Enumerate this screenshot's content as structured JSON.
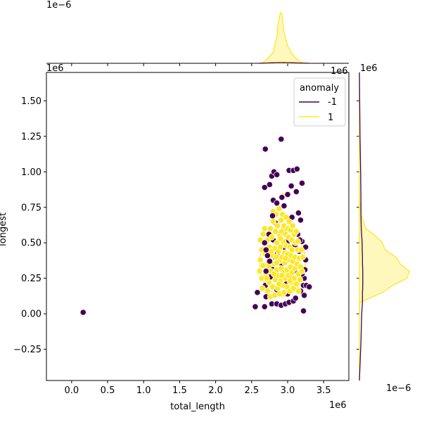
{
  "chart_data": {
    "type": "scatter",
    "variant": "jointplot",
    "xlabel": "total_length",
    "ylabel": "longest",
    "x_offset_text": "1e6",
    "y_offset_text": "1e6",
    "x_tick_labels": [
      "0.0",
      "0.5",
      "1.0",
      "1.5",
      "2.0",
      "2.5",
      "3.0",
      "3.5"
    ],
    "x_tick_values": [
      0,
      500000,
      1000000,
      1500000,
      2000000,
      2500000,
      3000000,
      3500000
    ],
    "y_tick_labels": [
      "−0.25",
      "0.00",
      "0.25",
      "0.50",
      "0.75",
      "1.00",
      "1.25",
      "1.50"
    ],
    "y_tick_values": [
      -250000,
      0,
      250000,
      500000,
      750000,
      1000000,
      1250000,
      1500000
    ],
    "xlim": [
      -350000,
      3850000
    ],
    "ylim": [
      -470000,
      1700000
    ],
    "marginal_x_offset_text": "1e−6",
    "marginal_y_offset_text": "1e−6",
    "legend": {
      "title": "anomaly",
      "placement": "upper-right",
      "entries": [
        {
          "label": "-1",
          "color": "#440154"
        },
        {
          "label": "1",
          "color": "#fde725"
        }
      ]
    },
    "colors": {
      "anomaly_neg": "#440154",
      "anomaly_pos": "#fde725",
      "marker_edge": "#ffffff"
    },
    "series": [
      {
        "name": "-1",
        "points": [
          [
            160000,
            10000
          ],
          [
            2550000,
            50000
          ],
          [
            2580000,
            150000
          ],
          [
            2680000,
            50000
          ],
          [
            2690000,
            1160000
          ],
          [
            2680000,
            890000
          ],
          [
            2750000,
            910000
          ],
          [
            2780000,
            970000
          ],
          [
            2810000,
            1000000
          ],
          [
            2850000,
            980000
          ],
          [
            2910000,
            1230000
          ],
          [
            2800000,
            800000
          ],
          [
            2850000,
            780000
          ],
          [
            2920000,
            820000
          ],
          [
            2950000,
            760000
          ],
          [
            3020000,
            1010000
          ],
          [
            3080000,
            1010000
          ],
          [
            3130000,
            1020000
          ],
          [
            3120000,
            860000
          ],
          [
            3000000,
            840000
          ],
          [
            3050000,
            900000
          ],
          [
            3200000,
            920000
          ],
          [
            3150000,
            710000
          ],
          [
            3180000,
            660000
          ],
          [
            2790000,
            690000
          ],
          [
            2750000,
            370000
          ],
          [
            2680000,
            500000
          ],
          [
            2700000,
            450000
          ],
          [
            2720000,
            410000
          ],
          [
            2700000,
            300000
          ],
          [
            2690000,
            200000
          ],
          [
            2700000,
            120000
          ],
          [
            2780000,
            70000
          ],
          [
            2850000,
            70000
          ],
          [
            2910000,
            60000
          ],
          [
            2970000,
            70000
          ],
          [
            3020000,
            80000
          ],
          [
            3080000,
            90000
          ],
          [
            3110000,
            110000
          ],
          [
            3180000,
            160000
          ],
          [
            3220000,
            200000
          ],
          [
            3260000,
            200000
          ],
          [
            3300000,
            190000
          ],
          [
            3230000,
            130000
          ],
          [
            3220000,
            20000
          ],
          [
            3200000,
            510000
          ],
          [
            3250000,
            470000
          ],
          [
            3250000,
            380000
          ],
          [
            3240000,
            310000
          ],
          [
            3230000,
            250000
          ],
          [
            2800000,
            520000
          ],
          [
            2880000,
            560000
          ],
          [
            2950000,
            600000
          ],
          [
            3000000,
            510000
          ],
          [
            3050000,
            520000
          ],
          [
            3100000,
            480000
          ],
          [
            3140000,
            560000
          ],
          [
            3160000,
            440000
          ],
          [
            2820000,
            400000
          ],
          [
            2860000,
            430000
          ],
          [
            2920000,
            350000
          ],
          [
            2950000,
            470000
          ],
          [
            2780000,
            330000
          ],
          [
            3100000,
            300000
          ],
          [
            3060000,
            260000
          ],
          [
            2980000,
            210000
          ],
          [
            2890000,
            250000
          ],
          [
            2850000,
            170000
          ],
          [
            3000000,
            140000
          ],
          [
            3200000,
            280000
          ],
          [
            2760000,
            260000
          ],
          [
            2830000,
            640000
          ],
          [
            3060000,
            680000
          ],
          [
            3170000,
            520000
          ],
          [
            2740000,
            560000
          ]
        ]
      },
      {
        "name": "1",
        "points": [
          [
            2610000,
            300000
          ],
          [
            2620000,
            380000
          ],
          [
            2640000,
            450000
          ],
          [
            2640000,
            250000
          ],
          [
            2650000,
            180000
          ],
          [
            2660000,
            560000
          ],
          [
            2660000,
            340000
          ],
          [
            2680000,
            600000
          ],
          [
            2690000,
            420000
          ],
          [
            2700000,
            280000
          ],
          [
            2720000,
            160000
          ],
          [
            2720000,
            520000
          ],
          [
            2730000,
            360000
          ],
          [
            2740000,
            220000
          ],
          [
            2750000,
            470000
          ],
          [
            2760000,
            120000
          ],
          [
            2760000,
            600000
          ],
          [
            2770000,
            300000
          ],
          [
            2780000,
            540000
          ],
          [
            2790000,
            410000
          ],
          [
            2790000,
            190000
          ],
          [
            2800000,
            650000
          ],
          [
            2800000,
            720000
          ],
          [
            2810000,
            350000
          ],
          [
            2820000,
            460000
          ],
          [
            2820000,
            130000
          ],
          [
            2830000,
            580000
          ],
          [
            2830000,
            240000
          ],
          [
            2840000,
            700000
          ],
          [
            2840000,
            400000
          ],
          [
            2850000,
            310000
          ],
          [
            2850000,
            500000
          ],
          [
            2860000,
            620000
          ],
          [
            2860000,
            180000
          ],
          [
            2870000,
            440000
          ],
          [
            2870000,
            270000
          ],
          [
            2880000,
            740000
          ],
          [
            2880000,
            370000
          ],
          [
            2890000,
            550000
          ],
          [
            2890000,
            140000
          ],
          [
            2900000,
            470000
          ],
          [
            2900000,
            230000
          ],
          [
            2910000,
            660000
          ],
          [
            2910000,
            320000
          ],
          [
            2920000,
            580000
          ],
          [
            2920000,
            400000
          ],
          [
            2930000,
            200000
          ],
          [
            2930000,
            700000
          ],
          [
            2940000,
            510000
          ],
          [
            2940000,
            290000
          ],
          [
            2950000,
            620000
          ],
          [
            2950000,
            150000
          ],
          [
            2960000,
            430000
          ],
          [
            2960000,
            360000
          ],
          [
            2970000,
            560000
          ],
          [
            2970000,
            250000
          ],
          [
            2980000,
            480000
          ],
          [
            2980000,
            680000
          ],
          [
            2990000,
            310000
          ],
          [
            2990000,
            190000
          ],
          [
            3000000,
            600000
          ],
          [
            3000000,
            420000
          ],
          [
            3010000,
            540000
          ],
          [
            3010000,
            270000
          ],
          [
            3020000,
            380000
          ],
          [
            3020000,
            650000
          ],
          [
            3030000,
            160000
          ],
          [
            3030000,
            470000
          ],
          [
            3040000,
            330000
          ],
          [
            3040000,
            590000
          ],
          [
            3050000,
            220000
          ],
          [
            3050000,
            410000
          ],
          [
            3060000,
            520000
          ],
          [
            3060000,
            290000
          ],
          [
            3070000,
            620000
          ],
          [
            3070000,
            370000
          ],
          [
            3080000,
            180000
          ],
          [
            3080000,
            450000
          ],
          [
            3090000,
            560000
          ],
          [
            3090000,
            250000
          ],
          [
            3100000,
            400000
          ],
          [
            3100000,
            320000
          ],
          [
            3110000,
            500000
          ],
          [
            3120000,
            210000
          ],
          [
            3120000,
            580000
          ],
          [
            3130000,
            350000
          ],
          [
            3140000,
            450000
          ],
          [
            3150000,
            280000
          ],
          [
            3150000,
            160000
          ],
          [
            3160000,
            390000
          ],
          [
            3170000,
            240000
          ],
          [
            3180000,
            330000
          ],
          [
            3190000,
            450000
          ],
          [
            3200000,
            300000
          ],
          [
            3210000,
            400000
          ],
          [
            2620000,
            520000
          ],
          [
            2710000,
            250000
          ],
          [
            2770000,
            440000
          ],
          [
            2940000,
            830000
          ],
          [
            2960000,
            760000
          ],
          [
            2810000,
            280000
          ],
          [
            2900000,
            530000
          ],
          [
            3030000,
            230000
          ],
          [
            2850000,
            360000
          ],
          [
            2970000,
            390000
          ],
          [
            3140000,
            510000
          ],
          [
            2740000,
            340000
          ],
          [
            2880000,
            210000
          ],
          [
            3060000,
            450000
          ],
          [
            2920000,
            270000
          ]
        ]
      }
    ],
    "marginal_x": {
      "x": [
        2600000,
        2650000,
        2700000,
        2750000,
        2800000,
        2850000,
        2870000,
        2900000,
        2920000,
        2950000,
        3000000,
        3050000,
        3100000,
        3150000,
        3200000,
        3250000,
        3300000
      ],
      "density_pos": [
        0.0,
        0.01,
        0.06,
        0.14,
        0.22,
        0.55,
        0.82,
        1.02,
        1.0,
        0.62,
        0.35,
        0.22,
        0.12,
        0.06,
        0.02,
        0.005,
        0.0
      ],
      "density_neg": [
        0.0,
        0.002,
        0.005,
        0.008,
        0.01,
        0.012,
        0.013,
        0.014,
        0.014,
        0.013,
        0.012,
        0.01,
        0.008,
        0.006,
        0.004,
        0.002,
        0.0
      ]
    },
    "marginal_y": {
      "y": [
        -470000,
        -200000,
        0,
        80000,
        150000,
        200000,
        250000,
        300000,
        350000,
        400000,
        450000,
        500000,
        550000,
        600000,
        700000,
        800000,
        1000000,
        1250000,
        1700000
      ],
      "density_pos": [
        0.0,
        0.0,
        0.0,
        0.02,
        0.9,
        1.3,
        1.85,
        1.95,
        1.6,
        1.42,
        1.0,
        0.9,
        0.62,
        0.25,
        0.06,
        0.01,
        0.0,
        0.0,
        0.0
      ],
      "density_neg": [
        0.0,
        0.01,
        0.015,
        0.02,
        0.02,
        0.022,
        0.022,
        0.022,
        0.02,
        0.02,
        0.018,
        0.018,
        0.015,
        0.012,
        0.01,
        0.01,
        0.008,
        0.004,
        0.0
      ]
    }
  }
}
